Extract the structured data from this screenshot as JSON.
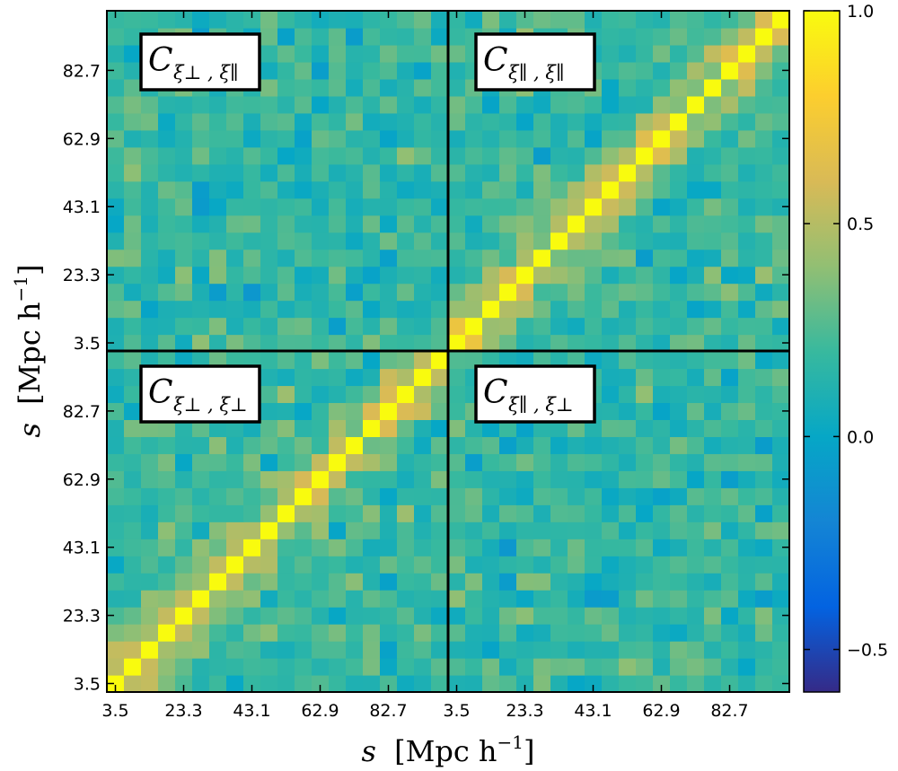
{
  "chart_data": {
    "type": "heatmap",
    "title": "",
    "xlabel_var": "s",
    "xlabel_unit": "[Mpc h",
    "xlabel_exp": "−1",
    "xlabel_close": "]",
    "ylabel_var": "s",
    "ylabel_unit": "[Mpc h",
    "ylabel_exp": "−1",
    "ylabel_close": "]",
    "n_bins_per_block": 20,
    "blocks": 2,
    "tick_labels": [
      "3.5",
      "23.3",
      "43.1",
      "62.9",
      "82.7"
    ],
    "tick_bins": [
      0,
      4,
      8,
      12,
      16
    ],
    "panels": [
      {
        "position": "top-left",
        "label_main": "C",
        "label_sub": "ξ⊥ , ξ∥"
      },
      {
        "position": "top-right",
        "label_main": "C",
        "label_sub": "ξ∥ , ξ∥"
      },
      {
        "position": "bottom-left",
        "label_main": "C",
        "label_sub": "ξ⊥ , ξ⊥"
      },
      {
        "position": "bottom-right",
        "label_main": "C",
        "label_sub": "ξ∥ , ξ⊥"
      }
    ],
    "colorbar": {
      "vmin": -0.6,
      "vmax": 1.0,
      "ticks": [
        1.0,
        0.5,
        0.0,
        -0.5
      ],
      "tick_labels": [
        "1.0",
        "0.5",
        "0.0",
        "−0.5"
      ],
      "colormap": "parula"
    },
    "value_model": {
      "diagonal": 1.0,
      "offdiag_background_mean": 0.18,
      "offdiag_noise_amplitude": 0.14,
      "near_diagonal_boost": [
        0.32,
        0.2,
        0.1
      ],
      "cross_block_mean": 0.17,
      "seed": 12345
    }
  }
}
